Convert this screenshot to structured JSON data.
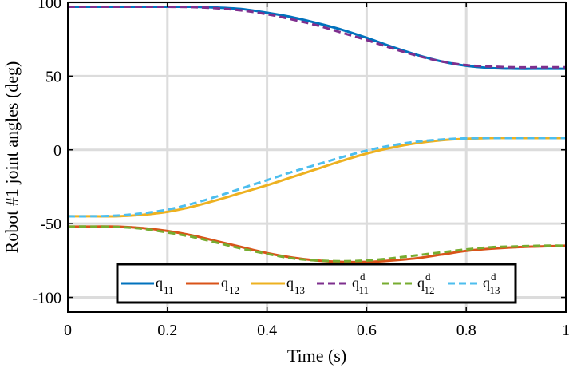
{
  "chart_data": {
    "type": "line",
    "title": "",
    "xlabel": "Time (s)",
    "ylabel": "Robot #1 joint angles (deg)",
    "xlim": [
      0,
      1
    ],
    "ylim": [
      -110,
      100
    ],
    "xticks": [
      0,
      0.2,
      0.4,
      0.6,
      0.8,
      1
    ],
    "xtick_labels": [
      "0",
      "0.2",
      "0.4",
      "0.6",
      "0.8",
      "1"
    ],
    "yticks": [
      -100,
      -50,
      0,
      50,
      100
    ],
    "ytick_labels": [
      "-100",
      "-50",
      "0",
      "50",
      "100"
    ],
    "grid": true,
    "legend_placement": "bottom-center",
    "x": [
      0,
      0.05,
      0.1,
      0.15,
      0.2,
      0.25,
      0.3,
      0.35,
      0.4,
      0.45,
      0.5,
      0.55,
      0.6,
      0.65,
      0.7,
      0.75,
      0.8,
      0.85,
      0.9,
      0.95,
      1.0
    ],
    "series": [
      {
        "key": "q11",
        "base": "q",
        "sup": "",
        "sub": "11",
        "color": "#0072BD",
        "dash": "solid",
        "values": [
          97,
          97,
          97,
          97,
          97,
          97,
          96.5,
          95.5,
          93,
          90,
          86,
          81.5,
          76,
          70,
          64.5,
          60,
          57,
          55.5,
          55,
          55,
          55
        ]
      },
      {
        "key": "q12",
        "base": "q",
        "sup": "",
        "sub": "12",
        "color": "#D95319",
        "dash": "solid",
        "values": [
          -52,
          -52,
          -52,
          -53,
          -55,
          -58,
          -62,
          -66,
          -70,
          -73,
          -75,
          -76,
          -76,
          -75,
          -73.5,
          -71,
          -68.5,
          -67,
          -66,
          -65.5,
          -65
        ]
      },
      {
        "key": "q13",
        "base": "q",
        "sup": "",
        "sub": "13",
        "color": "#EDB120",
        "dash": "solid",
        "values": [
          -45,
          -45,
          -45,
          -44,
          -42,
          -38.5,
          -34,
          -29,
          -24,
          -18.5,
          -13,
          -7.5,
          -2.5,
          1.5,
          4.5,
          6.5,
          7.5,
          8,
          8,
          8,
          8
        ]
      },
      {
        "key": "q11d",
        "base": "q",
        "sup": "d",
        "sub": "11",
        "color": "#7E2F8E",
        "dash": "dashed",
        "values": [
          97,
          97,
          97,
          97,
          97,
          96.8,
          96,
          94.5,
          92,
          88.5,
          84.5,
          79.5,
          74.5,
          69,
          64,
          60,
          57.5,
          56.5,
          56,
          56,
          56
        ]
      },
      {
        "key": "q12d",
        "base": "q",
        "sup": "d",
        "sub": "12",
        "color": "#77AC30",
        "dash": "dashed",
        "values": [
          -52,
          -52,
          -52.3,
          -53.5,
          -56,
          -59,
          -63,
          -67,
          -70.5,
          -73.5,
          -75,
          -75.5,
          -75,
          -73.5,
          -71.5,
          -69.5,
          -67.5,
          -66,
          -65.5,
          -65,
          -65
        ]
      },
      {
        "key": "q13d",
        "base": "q",
        "sup": "d",
        "sub": "13",
        "color": "#4DBEEE",
        "dash": "dashed",
        "values": [
          -45,
          -45,
          -44.5,
          -43,
          -40.5,
          -36.5,
          -31.5,
          -26,
          -20.5,
          -15,
          -10,
          -5,
          -0.5,
          3,
          5.5,
          7,
          7.8,
          8,
          8,
          8,
          8
        ]
      }
    ]
  }
}
